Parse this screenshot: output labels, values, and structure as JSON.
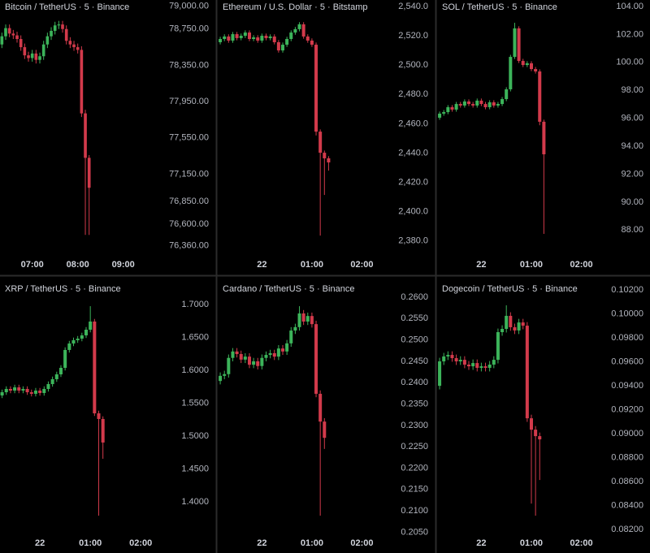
{
  "chart_data": [
    {
      "type": "candlestick",
      "title": "Bitcoin / TetherUS · 5 · Binance",
      "up_color": "#3cb45a",
      "down_color": "#d23a4b",
      "categories": [
        null,
        null,
        null,
        null,
        null,
        null,
        null,
        null,
        null,
        null,
        null,
        null,
        null,
        null,
        null,
        null,
        null,
        null,
        null,
        null,
        null,
        null,
        null,
        null
      ],
      "open": [
        78580,
        78670,
        78760,
        78700,
        78680,
        78640,
        78550,
        78460,
        78430,
        78480,
        78410,
        78450,
        78580,
        78670,
        78730,
        78790,
        78800,
        78750,
        78620,
        78580,
        78550,
        78520,
        77820,
        77330
      ],
      "high": [
        78710,
        78800,
        78800,
        78740,
        78720,
        78680,
        78590,
        78500,
        78520,
        78520,
        78490,
        78620,
        78710,
        78770,
        78830,
        78840,
        78840,
        78790,
        78660,
        78620,
        78590,
        78560,
        77860,
        77360
      ],
      "low": [
        78540,
        78630,
        78660,
        78640,
        78600,
        78510,
        78420,
        78390,
        78390,
        78370,
        78370,
        78410,
        78540,
        78630,
        78690,
        78750,
        78710,
        78580,
        78540,
        78510,
        78480,
        77780,
        76480,
        76480
      ],
      "close": [
        78670,
        78760,
        78700,
        78680,
        78640,
        78550,
        78460,
        78430,
        78480,
        78410,
        78450,
        78580,
        78670,
        78730,
        78790,
        78800,
        78750,
        78620,
        78580,
        78550,
        78520,
        77820,
        77330,
        77000
      ],
      "xlim": [
        -0.5,
        41.7
      ],
      "ylim": [
        76250,
        79070
      ],
      "yticks": [
        {
          "value": 79000,
          "label": "79,000.00"
        },
        {
          "value": 78750,
          "label": "78,750.00"
        },
        {
          "value": 78350,
          "label": "78,350.00"
        },
        {
          "value": 77950,
          "label": "77,950.00"
        },
        {
          "value": 77550,
          "label": "77,550.00"
        },
        {
          "value": 77150,
          "label": "77,150.00"
        },
        {
          "value": 76850,
          "label": "76,850.00"
        },
        {
          "value": 76600,
          "label": "76,600.00"
        },
        {
          "value": 76360,
          "label": "76,360.00"
        }
      ],
      "xticks": [
        {
          "value": 8,
          "label": "07:00"
        },
        {
          "value": 20,
          "label": "08:00"
        },
        {
          "value": 32,
          "label": "09:00"
        }
      ]
    },
    {
      "type": "candlestick",
      "title": "Ethereum / U.S. Dollar · 5 · Bitstamp",
      "up_color": "#3cb45a",
      "down_color": "#d23a4b",
      "categories": [
        null,
        null,
        null,
        null,
        null,
        null,
        null,
        null,
        null,
        null,
        null,
        null,
        null,
        null,
        null,
        null,
        null,
        null,
        null,
        null,
        null,
        null,
        null,
        null,
        null,
        null,
        null
      ],
      "open": [
        2515.6,
        2517.8,
        2519.5,
        2516.7,
        2521.1,
        2518.4,
        2520.0,
        2522.2,
        2517.8,
        2518.9,
        2516.7,
        2520.0,
        2518.4,
        2519.5,
        2515.6,
        2510.0,
        2513.9,
        2517.8,
        2522.2,
        2524.5,
        2527.8,
        2519.5,
        2516.7,
        2513.9,
        2454.6,
        2440.2,
        2436.4
      ],
      "high": [
        2519.3,
        2521.0,
        2521.0,
        2522.6,
        2522.6,
        2521.5,
        2523.7,
        2523.7,
        2520.4,
        2520.4,
        2521.5,
        2521.5,
        2521.0,
        2521.0,
        2517.1,
        2515.4,
        2519.3,
        2523.7,
        2526.0,
        2529.3,
        2529.3,
        2521.0,
        2518.2,
        2515.4,
        2456.1,
        2441.7,
        2437.9
      ],
      "low": [
        2514.1,
        2516.3,
        2515.2,
        2515.2,
        2516.9,
        2516.9,
        2518.5,
        2516.3,
        2516.3,
        2515.2,
        2515.2,
        2516.9,
        2516.9,
        2514.1,
        2508.5,
        2508.5,
        2512.4,
        2516.3,
        2520.7,
        2523.0,
        2518.0,
        2515.2,
        2512.4,
        2452.0,
        2383.7,
        2411.4,
        2428.0
      ],
      "close": [
        2517.8,
        2519.5,
        2516.7,
        2521.1,
        2518.4,
        2520.0,
        2522.2,
        2517.8,
        2518.9,
        2516.7,
        2520.0,
        2518.4,
        2519.5,
        2515.6,
        2510.0,
        2513.9,
        2517.8,
        2522.2,
        2524.5,
        2527.8,
        2519.5,
        2516.7,
        2513.9,
        2454.6,
        2440.2,
        2436.4,
        2433.6
      ],
      "xlim": [
        -0.6,
        38.2
      ],
      "ylim": [
        2369.9,
        2544.4
      ],
      "yticks": [
        {
          "value": 2540,
          "label": "2,540.0"
        },
        {
          "value": 2520,
          "label": "2,520.0"
        },
        {
          "value": 2500,
          "label": "2,500.0"
        },
        {
          "value": 2480,
          "label": "2,480.0"
        },
        {
          "value": 2460,
          "label": "2,460.0"
        },
        {
          "value": 2440,
          "label": "2,440.0"
        },
        {
          "value": 2420,
          "label": "2,420.0"
        },
        {
          "value": 2400,
          "label": "2,400.0"
        },
        {
          "value": 2380,
          "label": "2,380.0"
        }
      ],
      "xticks": [
        {
          "value": 10,
          "label": "22"
        },
        {
          "value": 22,
          "label": "01:00"
        },
        {
          "value": 34,
          "label": "02:00"
        }
      ]
    },
    {
      "type": "candlestick",
      "title": "SOL / TetherUS · 5 · Binance",
      "up_color": "#3cb45a",
      "down_color": "#d23a4b",
      "categories": [
        null,
        null,
        null,
        null,
        null,
        null,
        null,
        null,
        null,
        null,
        null,
        null,
        null,
        null,
        null,
        null,
        null,
        null,
        null,
        null,
        null,
        null,
        null,
        null,
        null,
        null
      ],
      "open": [
        96.04,
        96.33,
        96.44,
        96.79,
        96.62,
        97.02,
        96.91,
        97.2,
        97.02,
        96.91,
        97.26,
        97.02,
        96.79,
        97.14,
        96.91,
        97.02,
        97.37,
        98.07,
        100.39,
        102.43,
        100.1,
        99.81,
        99.93,
        99.52,
        99.35,
        95.75
      ],
      "high": [
        96.48,
        96.59,
        96.94,
        96.94,
        97.17,
        97.17,
        97.35,
        97.35,
        97.17,
        97.41,
        97.41,
        97.17,
        97.29,
        97.29,
        97.17,
        97.52,
        98.22,
        100.54,
        102.83,
        102.58,
        100.25,
        100.08,
        100.08,
        99.67,
        99.5,
        95.9
      ],
      "low": [
        95.89,
        96.18,
        96.29,
        96.47,
        96.47,
        96.76,
        96.76,
        96.87,
        96.76,
        96.76,
        96.87,
        96.64,
        96.64,
        96.76,
        96.76,
        96.87,
        97.22,
        97.92,
        100.24,
        99.95,
        99.66,
        99.66,
        99.37,
        99.2,
        95.5,
        87.73
      ],
      "close": [
        96.33,
        96.44,
        96.79,
        96.62,
        97.02,
        96.91,
        97.2,
        97.02,
        96.91,
        97.26,
        97.02,
        96.79,
        97.14,
        96.91,
        97.02,
        97.37,
        98.07,
        100.39,
        102.43,
        100.1,
        99.81,
        99.93,
        99.52,
        99.35,
        95.75,
        93.42
      ],
      "xlim": [
        -0.6,
        37.2
      ],
      "ylim": [
        86.16,
        104.46
      ],
      "yticks": [
        {
          "value": 104,
          "label": "104.00"
        },
        {
          "value": 102,
          "label": "102.00"
        },
        {
          "value": 100,
          "label": "100.00"
        },
        {
          "value": 98,
          "label": "98.00"
        },
        {
          "value": 96,
          "label": "96.00"
        },
        {
          "value": 94,
          "label": "94.00"
        },
        {
          "value": 92,
          "label": "92.00"
        },
        {
          "value": 90,
          "label": "90.00"
        },
        {
          "value": 88,
          "label": "88.00"
        }
      ],
      "xticks": [
        {
          "value": 10,
          "label": "22"
        },
        {
          "value": 22,
          "label": "01:00"
        },
        {
          "value": 34,
          "label": "02:00"
        }
      ]
    },
    {
      "type": "candlestick",
      "title": "XRP / TetherUS · 5 · Binance",
      "up_color": "#3cb45a",
      "down_color": "#d23a4b",
      "categories": [
        null,
        null,
        null,
        null,
        null,
        null,
        null,
        null,
        null,
        null,
        null,
        null,
        null,
        null,
        null,
        null,
        null,
        null,
        null,
        null,
        null,
        null,
        null,
        null,
        null
      ],
      "open": [
        1.5617,
        1.5666,
        1.5716,
        1.5691,
        1.574,
        1.5691,
        1.5716,
        1.5666,
        1.5642,
        1.5691,
        1.5654,
        1.5716,
        1.579,
        1.5864,
        1.5938,
        1.6037,
        1.6309,
        1.6407,
        1.6457,
        1.6481,
        1.6531,
        1.6617,
        1.6741,
        1.5345,
        1.5259
      ],
      "high": [
        1.5706,
        1.5756,
        1.5756,
        1.578,
        1.578,
        1.5756,
        1.5756,
        1.5706,
        1.5731,
        1.5731,
        1.5756,
        1.583,
        1.5904,
        1.5978,
        1.6077,
        1.6349,
        1.6447,
        1.6497,
        1.6521,
        1.6571,
        1.6657,
        1.6975,
        1.6781,
        1.5385,
        1.5299
      ],
      "low": [
        1.5577,
        1.5626,
        1.5651,
        1.5651,
        1.5651,
        1.5651,
        1.5626,
        1.5602,
        1.5602,
        1.5614,
        1.5614,
        1.5676,
        1.575,
        1.5824,
        1.5898,
        1.5997,
        1.6269,
        1.6367,
        1.6417,
        1.6441,
        1.6491,
        1.6577,
        1.5305,
        1.3789,
        1.4654
      ],
      "close": [
        1.5666,
        1.5716,
        1.5691,
        1.574,
        1.5691,
        1.5716,
        1.5666,
        1.5642,
        1.5691,
        1.5654,
        1.5716,
        1.579,
        1.5864,
        1.5938,
        1.6037,
        1.6309,
        1.6407,
        1.6457,
        1.6481,
        1.6531,
        1.6617,
        1.6741,
        1.5345,
        1.5259,
        1.4901
      ],
      "xlim": [
        -0.5,
        37.6
      ],
      "ylim": [
        1.348,
        1.742
      ],
      "yticks": [
        {
          "value": 1.7,
          "label": "1.7000"
        },
        {
          "value": 1.65,
          "label": "1.6500"
        },
        {
          "value": 1.6,
          "label": "1.6000"
        },
        {
          "value": 1.55,
          "label": "1.5500"
        },
        {
          "value": 1.5,
          "label": "1.5000"
        },
        {
          "value": 1.45,
          "label": "1.4500"
        },
        {
          "value": 1.4,
          "label": "1.4000"
        }
      ],
      "xticks": [
        {
          "value": 9,
          "label": "22"
        },
        {
          "value": 21,
          "label": "01:00"
        },
        {
          "value": 33,
          "label": "02:00"
        }
      ]
    },
    {
      "type": "candlestick",
      "title": "Cardano / TetherUS · 5 · Binance",
      "up_color": "#3cb45a",
      "down_color": "#d23a4b",
      "categories": [
        null,
        null,
        null,
        null,
        null,
        null,
        null,
        null,
        null,
        null,
        null,
        null,
        null,
        null,
        null,
        null,
        null,
        null,
        null,
        null,
        null,
        null,
        null,
        null,
        null,
        null
      ],
      "open": [
        0.2404,
        0.2416,
        0.242,
        0.2458,
        0.2473,
        0.2467,
        0.2454,
        0.2461,
        0.2442,
        0.245,
        0.2439,
        0.2458,
        0.2465,
        0.2469,
        0.2461,
        0.248,
        0.2473,
        0.2492,
        0.2522,
        0.253,
        0.2562,
        0.2543,
        0.2556,
        0.2537,
        0.2374,
        0.2309
      ],
      "high": [
        0.2424,
        0.2428,
        0.2466,
        0.2481,
        0.2481,
        0.2475,
        0.2469,
        0.2469,
        0.2458,
        0.2458,
        0.2466,
        0.2473,
        0.2477,
        0.2477,
        0.2488,
        0.2488,
        0.25,
        0.253,
        0.2538,
        0.2579,
        0.257,
        0.2564,
        0.2564,
        0.2545,
        0.2382,
        0.2317
      ],
      "low": [
        0.2396,
        0.2408,
        0.2412,
        0.245,
        0.2459,
        0.2446,
        0.2446,
        0.2434,
        0.2434,
        0.2431,
        0.2431,
        0.245,
        0.2457,
        0.2453,
        0.2453,
        0.2465,
        0.2465,
        0.2484,
        0.2514,
        0.2522,
        0.2535,
        0.2535,
        0.2529,
        0.2366,
        0.2089,
        0.2245
      ],
      "close": [
        0.2416,
        0.242,
        0.2458,
        0.2473,
        0.2467,
        0.2454,
        0.2461,
        0.2442,
        0.245,
        0.2439,
        0.2458,
        0.2465,
        0.2469,
        0.2461,
        0.248,
        0.2473,
        0.2492,
        0.2522,
        0.253,
        0.2562,
        0.2543,
        0.2556,
        0.2537,
        0.2374,
        0.2309,
        0.2271
      ],
      "xlim": [
        -0.6,
        38.2
      ],
      "ylim": [
        0.20414,
        0.26475
      ],
      "yticks": [
        {
          "value": 0.26,
          "label": "0.2600"
        },
        {
          "value": 0.255,
          "label": "0.2550"
        },
        {
          "value": 0.25,
          "label": "0.2500"
        },
        {
          "value": 0.245,
          "label": "0.2450"
        },
        {
          "value": 0.24,
          "label": "0.2400"
        },
        {
          "value": 0.235,
          "label": "0.2350"
        },
        {
          "value": 0.23,
          "label": "0.2300"
        },
        {
          "value": 0.225,
          "label": "0.2250"
        },
        {
          "value": 0.22,
          "label": "0.2200"
        },
        {
          "value": 0.215,
          "label": "0.2150"
        },
        {
          "value": 0.21,
          "label": "0.2100"
        },
        {
          "value": 0.205,
          "label": "0.2050"
        }
      ],
      "xticks": [
        {
          "value": 10,
          "label": "22"
        },
        {
          "value": 22,
          "label": "01:00"
        },
        {
          "value": 34,
          "label": "02:00"
        }
      ]
    },
    {
      "type": "candlestick",
      "title": "Dogecoin / TetherUS · 5 · Binance",
      "up_color": "#3cb45a",
      "down_color": "#d23a4b",
      "categories": [
        null,
        null,
        null,
        null,
        null,
        null,
        null,
        null,
        null,
        null,
        null,
        null,
        null,
        null,
        null,
        null,
        null,
        null,
        null,
        null,
        null,
        null,
        null,
        null,
        null
      ],
      "open": [
        0.09399,
        0.09603,
        0.09644,
        0.09657,
        0.0963,
        0.09603,
        0.09616,
        0.09576,
        0.09562,
        0.09589,
        0.09549,
        0.09562,
        0.09549,
        0.09576,
        0.09616,
        0.09847,
        0.09874,
        0.09983,
        0.09888,
        0.09861,
        0.09928,
        0.09901,
        0.09128,
        0.09033,
        0.08979
      ],
      "high": [
        0.09633,
        0.09674,
        0.09687,
        0.09687,
        0.0966,
        0.09646,
        0.09646,
        0.09606,
        0.09619,
        0.09619,
        0.09592,
        0.09592,
        0.09606,
        0.09646,
        0.09877,
        0.09904,
        0.10071,
        0.10013,
        0.09918,
        0.09958,
        0.09958,
        0.09931,
        0.09158,
        0.09063,
        0.09009
      ],
      "low": [
        0.09369,
        0.09573,
        0.09614,
        0.096,
        0.09573,
        0.09573,
        0.09546,
        0.09532,
        0.09532,
        0.09519,
        0.09519,
        0.09519,
        0.09519,
        0.09546,
        0.09586,
        0.09817,
        0.09844,
        0.09858,
        0.09831,
        0.09831,
        0.09871,
        0.09098,
        0.08416,
        0.08315,
        0.08613
      ],
      "close": [
        0.09603,
        0.09644,
        0.09657,
        0.0963,
        0.09603,
        0.09616,
        0.09576,
        0.09562,
        0.09589,
        0.09549,
        0.09562,
        0.09549,
        0.09576,
        0.09616,
        0.09847,
        0.09874,
        0.09983,
        0.09888,
        0.09861,
        0.09928,
        0.09901,
        0.09128,
        0.09033,
        0.08979,
        0.08952
      ],
      "xlim": [
        -0.6,
        37.2
      ],
      "ylim": [
        0.08146,
        0.10308
      ],
      "yticks": [
        {
          "value": 0.102,
          "label": "0.10200"
        },
        {
          "value": 0.1,
          "label": "0.10000"
        },
        {
          "value": 0.098,
          "label": "0.09800"
        },
        {
          "value": 0.096,
          "label": "0.09600"
        },
        {
          "value": 0.094,
          "label": "0.09400"
        },
        {
          "value": 0.092,
          "label": "0.09200"
        },
        {
          "value": 0.09,
          "label": "0.09000"
        },
        {
          "value": 0.088,
          "label": "0.08800"
        },
        {
          "value": 0.086,
          "label": "0.08600"
        },
        {
          "value": 0.084,
          "label": "0.08400"
        },
        {
          "value": 0.082,
          "label": "0.08200"
        }
      ],
      "xticks": [
        {
          "value": 10,
          "label": "22"
        },
        {
          "value": 22,
          "label": "01:00"
        },
        {
          "value": 34,
          "label": "02:00"
        }
      ]
    }
  ]
}
